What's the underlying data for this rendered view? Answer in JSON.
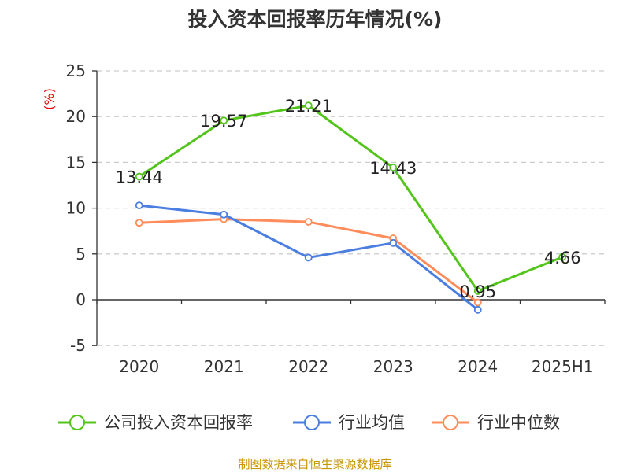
{
  "chart_data": {
    "type": "line",
    "title": "投入资本回报率历年情况(%)",
    "ylabel": "(%)",
    "xlabel": "",
    "categories": [
      "2020",
      "2021",
      "2022",
      "2023",
      "2024",
      "2025H1"
    ],
    "ylim": [
      -5,
      25
    ],
    "yticks": [
      -5,
      0,
      5,
      10,
      15,
      20,
      25
    ],
    "grid": true,
    "legend_position": "bottom",
    "series": [
      {
        "name": "公司投入资本回报率",
        "color": "#52c41a",
        "values": [
          13.44,
          19.57,
          21.21,
          14.43,
          0.95,
          4.66
        ],
        "labels": [
          "13.44",
          "19.57",
          "21.21",
          "14.43",
          "0.95",
          "4.66"
        ]
      },
      {
        "name": "行业均值",
        "color": "#4a7ee0",
        "values": [
          10.3,
          9.3,
          4.6,
          6.2,
          -1.1,
          null
        ]
      },
      {
        "name": "行业中位数",
        "color": "#ff8c5a",
        "values": [
          8.4,
          8.8,
          8.5,
          6.7,
          -0.3,
          null
        ]
      }
    ],
    "source": "制图数据来自恒生聚源数据库"
  },
  "colors": {
    "title": "#333333",
    "ylabel": "#e00000",
    "source": "#c89600",
    "grid": "#cccccc"
  }
}
